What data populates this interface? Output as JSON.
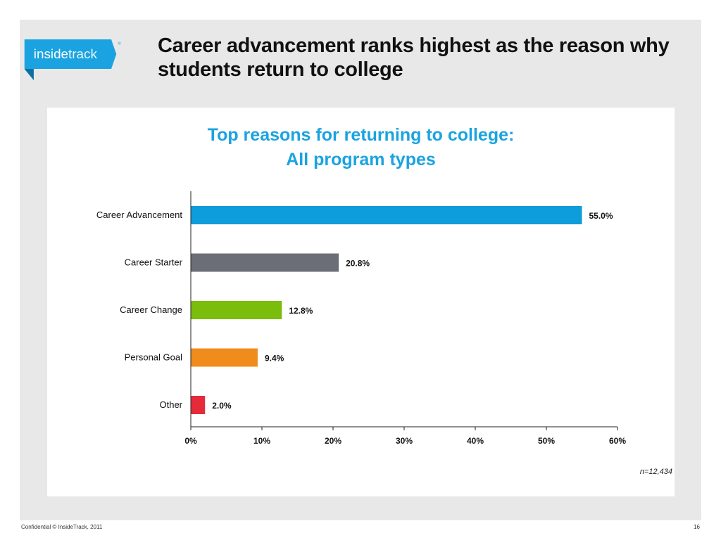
{
  "logo": {
    "inside": "inside",
    "track": "track",
    "reg": "®",
    "bg_color": "#1aa3e0"
  },
  "slide_title": "Career advancement ranks highest as the reason why students return to college",
  "chart_data": {
    "type": "bar",
    "orientation": "horizontal",
    "title_lines": [
      "Top reasons for returning to college:",
      "All program types"
    ],
    "categories": [
      "Career Advancement",
      "Career Starter",
      "Career Change",
      "Personal Goal",
      "Other"
    ],
    "values": [
      55.0,
      20.8,
      12.8,
      9.4,
      2.0
    ],
    "value_labels": [
      "55.0%",
      "20.8%",
      "12.8%",
      "9.4%",
      "2.0%"
    ],
    "colors": [
      "#0d9ddb",
      "#6b6e77",
      "#7abd0b",
      "#ef8c1c",
      "#e52a3a"
    ],
    "xlim": [
      0,
      60
    ],
    "xticks": [
      0,
      10,
      20,
      30,
      40,
      50,
      60
    ],
    "xtick_labels": [
      "0%",
      "10%",
      "20%",
      "30%",
      "40%",
      "50%",
      "60%"
    ],
    "grid": false,
    "legend": "none",
    "note": "n=12,434"
  },
  "footer": {
    "left": "Confidential   © InsideTrack, 2011",
    "page_number": "16"
  }
}
